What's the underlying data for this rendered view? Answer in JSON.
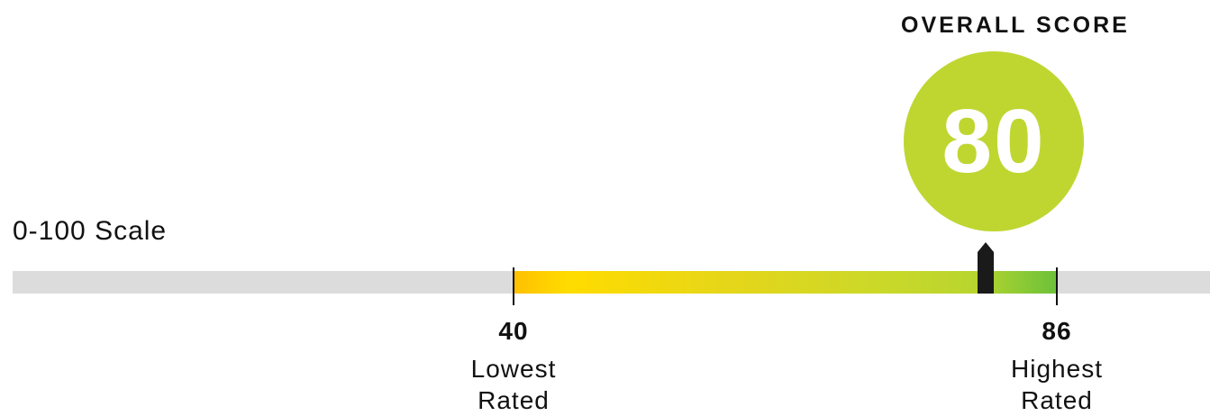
{
  "chart_data": {
    "type": "gauge",
    "scale_label": "0-100 Scale",
    "scale_min": 0,
    "scale_max": 100,
    "score_title": "OVERALL SCORE",
    "score": 80,
    "range_low": {
      "value": 40,
      "value_label": "40",
      "desc_line1": "Lowest",
      "desc_line2": "Rated"
    },
    "range_high": {
      "value": 86,
      "value_label": "86",
      "desc_line1": "Highest",
      "desc_line2": "Rated"
    }
  },
  "colors": {
    "score_circle": "#bfd631",
    "track": "#dcdcdc",
    "range_start": "#ffc000",
    "range_end": "#6cc13a",
    "marker": "#1a1a1a"
  },
  "icons": {
    "marker": "pointer-marker-icon"
  }
}
